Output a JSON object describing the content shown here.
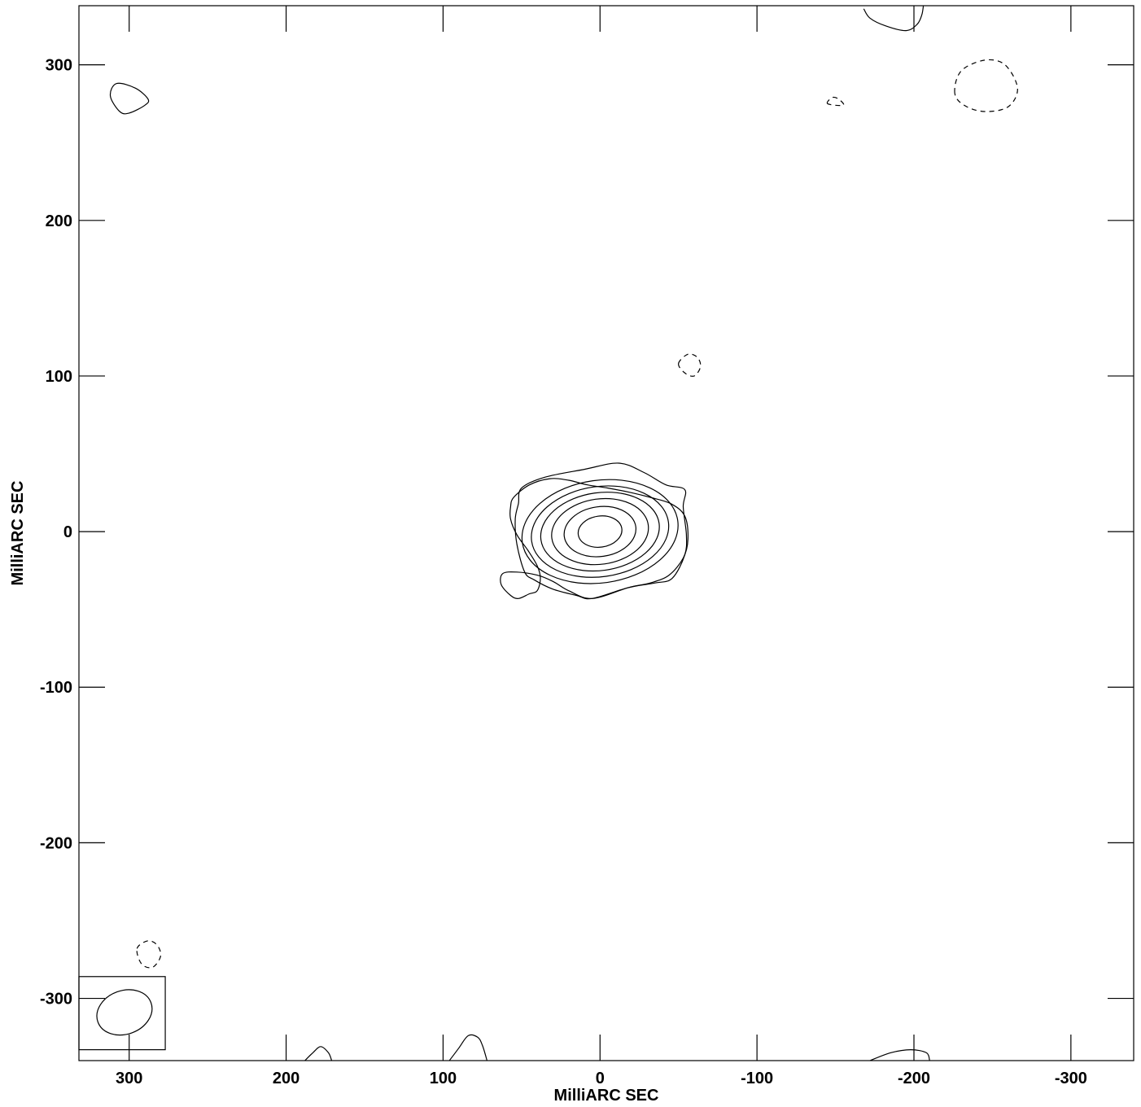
{
  "chart_data": {
    "type": "contour",
    "xlabel": "MilliARC SEC",
    "ylabel": "MilliARC SEC",
    "xlim": [
      332,
      -340
    ],
    "ylim": [
      -340,
      338
    ],
    "x_ticks": [
      300,
      200,
      100,
      0,
      -100,
      -200,
      -300
    ],
    "y_ticks": [
      300,
      200,
      100,
      0,
      -100,
      -200,
      -300
    ],
    "main_source": {
      "center": [
        0,
        0
      ],
      "levels": [
        {
          "kind": "ellipse",
          "rx": 14,
          "ry": 10
        },
        {
          "kind": "ellipse",
          "rx": 23,
          "ry": 16
        },
        {
          "kind": "ellipse",
          "rx": 31,
          "ry": 21
        },
        {
          "kind": "ellipse",
          "rx": 38,
          "ry": 25
        },
        {
          "kind": "ellipse",
          "rx": 44,
          "ry": 29
        },
        {
          "kind": "ellipse",
          "rx": 50,
          "ry": 33
        },
        {
          "kind": "polygon",
          "points": [
            [
              50,
              28
            ],
            [
              35,
              35
            ],
            [
              10,
              40
            ],
            [
              -12,
              44
            ],
            [
              -28,
              38
            ],
            [
              -42,
              30
            ],
            [
              -54,
              27
            ],
            [
              -53,
              16
            ],
            [
              -55,
              -2
            ],
            [
              -54,
              -15
            ],
            [
              -46,
              -30
            ],
            [
              -35,
              -33
            ],
            [
              -18,
              -36
            ],
            [
              5,
              -43
            ],
            [
              15,
              -41
            ],
            [
              30,
              -37
            ],
            [
              42,
              -31
            ],
            [
              48,
              -26
            ],
            [
              53,
              -8
            ],
            [
              54,
              8
            ],
            [
              52,
              18
            ]
          ]
        },
        {
          "kind": "polygon",
          "points": [
            [
              55,
              22
            ],
            [
              45,
              30
            ],
            [
              32,
              34
            ],
            [
              20,
              33
            ],
            [
              8,
              30
            ],
            [
              -5,
              28
            ],
            [
              -20,
              25
            ],
            [
              -32,
              22
            ],
            [
              -45,
              18
            ],
            [
              -54,
              10
            ],
            [
              -56,
              -5
            ],
            [
              -53,
              -17
            ],
            [
              -44,
              -28
            ],
            [
              -32,
              -33
            ],
            [
              -18,
              -36
            ],
            [
              5,
              -43
            ],
            [
              20,
              -38
            ],
            [
              30,
              -32
            ],
            [
              40,
              -28
            ],
            [
              53,
              -26
            ],
            [
              62,
              -27
            ],
            [
              63,
              -34
            ],
            [
              57,
              -41
            ],
            [
              52,
              -43
            ],
            [
              45,
              -40
            ],
            [
              40,
              -38
            ],
            [
              38,
              -30
            ],
            [
              40,
              -22
            ],
            [
              46,
              -12
            ],
            [
              53,
              -2
            ],
            [
              57,
              8
            ],
            [
              57,
              16
            ]
          ]
        }
      ]
    },
    "noise_contours": [
      {
        "dashed": false,
        "points": [
          [
            290,
            274
          ],
          [
            300,
            269
          ],
          [
            306,
            270
          ],
          [
            312,
            280
          ],
          [
            308,
            288
          ],
          [
            296,
            285
          ],
          [
            288,
            278
          ]
        ]
      },
      {
        "dashed": true,
        "points": [
          [
            -226,
            282
          ],
          [
            -230,
            296
          ],
          [
            -245,
            303
          ],
          [
            -258,
            300
          ],
          [
            -266,
            285
          ],
          [
            -260,
            273
          ],
          [
            -245,
            270
          ],
          [
            -232,
            274
          ]
        ]
      },
      {
        "dashed": true,
        "points": [
          [
            -145,
            275
          ],
          [
            -148,
            279
          ],
          [
            -152,
            278
          ],
          [
            -155,
            274
          ]
        ]
      },
      {
        "dashed": true,
        "points": [
          [
            -50,
            108
          ],
          [
            -56,
            114
          ],
          [
            -62,
            112
          ],
          [
            -64,
            106
          ],
          [
            -60,
            100
          ],
          [
            -54,
            102
          ]
        ]
      },
      {
        "dashed": true,
        "points": [
          [
            295,
            -268
          ],
          [
            288,
            -263
          ],
          [
            282,
            -266
          ],
          [
            280,
            -273
          ],
          [
            285,
            -280
          ],
          [
            292,
            -278
          ]
        ]
      },
      {
        "dashed": false,
        "points": [
          [
            -168,
            336
          ],
          [
            -172,
            330
          ],
          [
            -182,
            325
          ],
          [
            -195,
            322
          ],
          [
            -202,
            326
          ],
          [
            -205,
            332
          ],
          [
            -206,
            338
          ]
        ]
      },
      {
        "dashed": false,
        "points": [
          [
            96,
            -340
          ],
          [
            90,
            -332
          ],
          [
            84,
            -324
          ],
          [
            78,
            -325
          ],
          [
            75,
            -330
          ],
          [
            72,
            -340
          ]
        ]
      },
      {
        "dashed": false,
        "points": [
          [
            188,
            -340
          ],
          [
            183,
            -335
          ],
          [
            178,
            -331
          ],
          [
            173,
            -335
          ],
          [
            171,
            -340
          ]
        ]
      },
      {
        "dashed": false,
        "points": [
          [
            -172,
            -340
          ],
          [
            -185,
            -335
          ],
          [
            -198,
            -333
          ],
          [
            -208,
            -335
          ],
          [
            -210,
            -340
          ]
        ]
      }
    ],
    "beam": {
      "center": [
        303,
        -309
      ],
      "rx": 18,
      "ry": 14,
      "angle_deg": -20,
      "box": {
        "x0": 332,
        "x1": 277,
        "y0": -333,
        "y1": -286
      }
    }
  }
}
